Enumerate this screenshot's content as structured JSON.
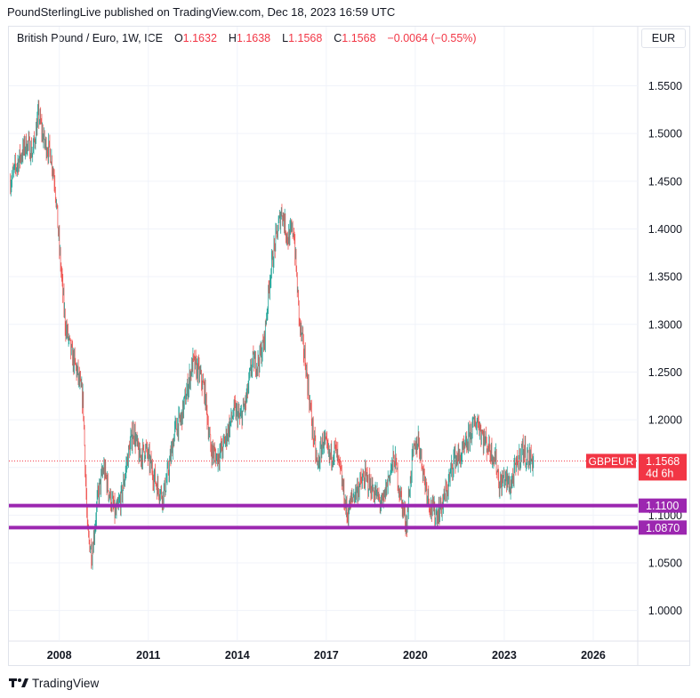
{
  "header": {
    "attribution": "PoundSterlingLive published on TradingView.com, Dec 18, 2023 16:59 UTC"
  },
  "legend": {
    "symbol": "British Pound / Euro, 1W, ICE",
    "open_label": "O",
    "open": "1.1632",
    "high_label": "H",
    "high": "1.1638",
    "low_label": "L",
    "low": "1.1568",
    "close_label": "C",
    "close": "1.1568",
    "change": "−0.0064 (−0.55%)"
  },
  "currency_button": "EUR",
  "price_tag": {
    "ticker": "GBPEUR",
    "price": "1.1568",
    "countdown": "4d 6h",
    "color": "#f23645"
  },
  "level_tags": [
    {
      "value": "1.1100",
      "price": 1.11,
      "color": "#9c27b0"
    },
    {
      "value": "1.0870",
      "price": 1.087,
      "color": "#9c27b0"
    }
  ],
  "footer": {
    "brand": "TradingView"
  },
  "colors": {
    "up": "#26a69a",
    "down": "#ef5350",
    "level": "#9c27b0",
    "grid": "#f0f3fa",
    "axis_text": "#131722"
  },
  "chart_data": {
    "type": "candlestick",
    "symbol": "GBPEUR",
    "timeframe": "1W",
    "x_ticks": [
      "2008",
      "2011",
      "2014",
      "2017",
      "2020",
      "2023",
      "2026"
    ],
    "x_tick_values": [
      2008,
      2011,
      2014,
      2017,
      2020,
      2023,
      2026
    ],
    "y_ticks": [
      "1.0000",
      "1.0500",
      "1.1000",
      "1.1500",
      "1.2000",
      "1.2500",
      "1.3000",
      "1.3500",
      "1.4000",
      "1.4500",
      "1.5000",
      "1.5500"
    ],
    "y_tick_values": [
      1.0,
      1.05,
      1.1,
      1.15,
      1.2,
      1.25,
      1.3,
      1.35,
      1.4,
      1.45,
      1.5,
      1.55
    ],
    "xlim": [
      2006.3,
      2027.5
    ],
    "ylim": [
      0.968,
      1.612
    ],
    "last_price": 1.1568,
    "horizontal_levels": [
      1.11,
      1.087
    ],
    "price_path": [
      [
        2006.35,
        1.45
      ],
      [
        2006.6,
        1.47
      ],
      [
        2006.9,
        1.49
      ],
      [
        2007.1,
        1.48
      ],
      [
        2007.3,
        1.52
      ],
      [
        2007.5,
        1.49
      ],
      [
        2007.7,
        1.48
      ],
      [
        2007.85,
        1.45
      ],
      [
        2008.0,
        1.38
      ],
      [
        2008.2,
        1.3
      ],
      [
        2008.4,
        1.27
      ],
      [
        2008.6,
        1.25
      ],
      [
        2008.8,
        1.22
      ],
      [
        2008.95,
        1.08
      ],
      [
        2009.1,
        1.06
      ],
      [
        2009.3,
        1.12
      ],
      [
        2009.5,
        1.15
      ],
      [
        2009.7,
        1.12
      ],
      [
        2009.9,
        1.1
      ],
      [
        2010.1,
        1.12
      ],
      [
        2010.3,
        1.16
      ],
      [
        2010.5,
        1.19
      ],
      [
        2010.7,
        1.16
      ],
      [
        2010.9,
        1.17
      ],
      [
        2011.1,
        1.15
      ],
      [
        2011.3,
        1.13
      ],
      [
        2011.5,
        1.12
      ],
      [
        2011.7,
        1.15
      ],
      [
        2011.9,
        1.19
      ],
      [
        2012.1,
        1.2
      ],
      [
        2012.3,
        1.23
      ],
      [
        2012.5,
        1.26
      ],
      [
        2012.7,
        1.25
      ],
      [
        2012.9,
        1.23
      ],
      [
        2013.1,
        1.17
      ],
      [
        2013.3,
        1.16
      ],
      [
        2013.5,
        1.17
      ],
      [
        2013.7,
        1.19
      ],
      [
        2013.9,
        1.21
      ],
      [
        2014.1,
        1.2
      ],
      [
        2014.3,
        1.22
      ],
      [
        2014.5,
        1.26
      ],
      [
        2014.7,
        1.26
      ],
      [
        2014.9,
        1.28
      ],
      [
        2015.1,
        1.35
      ],
      [
        2015.3,
        1.39
      ],
      [
        2015.5,
        1.42
      ],
      [
        2015.7,
        1.39
      ],
      [
        2015.9,
        1.4
      ],
      [
        2016.1,
        1.3
      ],
      [
        2016.3,
        1.26
      ],
      [
        2016.5,
        1.2
      ],
      [
        2016.7,
        1.15
      ],
      [
        2016.9,
        1.18
      ],
      [
        2017.1,
        1.16
      ],
      [
        2017.3,
        1.17
      ],
      [
        2017.5,
        1.14
      ],
      [
        2017.7,
        1.1
      ],
      [
        2017.9,
        1.12
      ],
      [
        2018.1,
        1.13
      ],
      [
        2018.3,
        1.14
      ],
      [
        2018.5,
        1.13
      ],
      [
        2018.7,
        1.12
      ],
      [
        2018.9,
        1.11
      ],
      [
        2019.1,
        1.14
      ],
      [
        2019.3,
        1.16
      ],
      [
        2019.5,
        1.12
      ],
      [
        2019.7,
        1.09
      ],
      [
        2019.9,
        1.16
      ],
      [
        2020.1,
        1.18
      ],
      [
        2020.3,
        1.14
      ],
      [
        2020.5,
        1.11
      ],
      [
        2020.7,
        1.1
      ],
      [
        2020.9,
        1.11
      ],
      [
        2021.1,
        1.13
      ],
      [
        2021.3,
        1.16
      ],
      [
        2021.5,
        1.16
      ],
      [
        2021.7,
        1.17
      ],
      [
        2021.9,
        1.19
      ],
      [
        2022.1,
        1.2
      ],
      [
        2022.3,
        1.18
      ],
      [
        2022.5,
        1.17
      ],
      [
        2022.7,
        1.16
      ],
      [
        2022.85,
        1.13
      ],
      [
        2023.0,
        1.14
      ],
      [
        2023.2,
        1.13
      ],
      [
        2023.4,
        1.15
      ],
      [
        2023.6,
        1.17
      ],
      [
        2023.8,
        1.16
      ],
      [
        2024.0,
        1.1568
      ]
    ]
  }
}
